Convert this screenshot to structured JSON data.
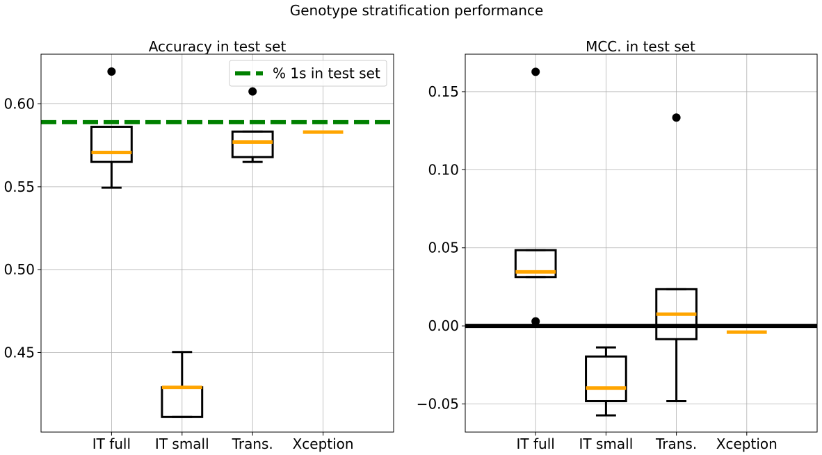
{
  "figure": {
    "title": "Genotype stratification performance"
  },
  "chart_data": [
    {
      "type": "box",
      "title": "Accuracy in test set",
      "categories": [
        "IT full",
        "IT small",
        "Trans.",
        "Xception"
      ],
      "ylim": [
        0.402,
        0.63
      ],
      "yticks": [
        0.45,
        0.5,
        0.55,
        0.6
      ],
      "ytick_labels": [
        "0.45",
        "0.50",
        "0.55",
        "0.60"
      ],
      "grid": true,
      "boxes": [
        {
          "category": "IT full",
          "whisker_low": 0.5495,
          "q1": 0.565,
          "median": 0.5707,
          "q3": 0.5862,
          "whisker_high": 0.5862,
          "fliers": [
            0.6195
          ]
        },
        {
          "category": "IT small",
          "whisker_low": 0.4111,
          "q1": 0.4111,
          "median": 0.429,
          "q3": 0.429,
          "whisker_high": 0.4503,
          "fliers": []
        },
        {
          "category": "Trans.",
          "whisker_low": 0.565,
          "q1": 0.5679,
          "median": 0.577,
          "q3": 0.5833,
          "whisker_high": 0.5833,
          "fliers": [
            0.6075
          ]
        },
        {
          "category": "Xception",
          "whisker_low": 0.583,
          "q1": 0.583,
          "median": 0.583,
          "q3": 0.583,
          "whisker_high": 0.583,
          "fliers": []
        }
      ],
      "reference_line": {
        "label": "% 1s in test set",
        "y": 0.589,
        "color": "#008000",
        "style": "dashed"
      },
      "legend_position": "top-right",
      "colors": {
        "box": "#000000",
        "median": "#ffa500",
        "flier": "#000000",
        "grid": "#b0b0b0"
      }
    },
    {
      "type": "box",
      "title": "MCC. in test set",
      "categories": [
        "IT full",
        "IT small",
        "Trans.",
        "Xception"
      ],
      "ylim": [
        -0.068,
        0.174
      ],
      "yticks": [
        -0.05,
        0.0,
        0.05,
        0.1,
        0.15
      ],
      "ytick_labels": [
        "−0.05",
        "0.00",
        "0.05",
        "0.10",
        "0.15"
      ],
      "grid": true,
      "boxes": [
        {
          "category": "IT full",
          "whisker_low": 0.0313,
          "q1": 0.0313,
          "median": 0.0346,
          "q3": 0.0485,
          "whisker_high": 0.0485,
          "fliers": [
            0.1627,
            0.0029
          ]
        },
        {
          "category": "IT small",
          "whisker_low": -0.0573,
          "q1": -0.0482,
          "median": -0.0398,
          "q3": -0.0196,
          "whisker_high": -0.0138,
          "fliers": []
        },
        {
          "category": "Trans.",
          "whisker_low": -0.0482,
          "q1": -0.0085,
          "median": 0.0075,
          "q3": 0.0235,
          "whisker_high": 0.0235,
          "fliers": [
            0.1334
          ]
        },
        {
          "category": "Xception",
          "whisker_low": -0.004,
          "q1": -0.004,
          "median": -0.004,
          "q3": -0.004,
          "whisker_high": -0.004,
          "fliers": []
        }
      ],
      "reference_line": {
        "label": "",
        "y": 0.0,
        "color": "#000000",
        "style": "solid"
      },
      "colors": {
        "box": "#000000",
        "median": "#ffa500",
        "flier": "#000000",
        "grid": "#b0b0b0"
      }
    }
  ]
}
